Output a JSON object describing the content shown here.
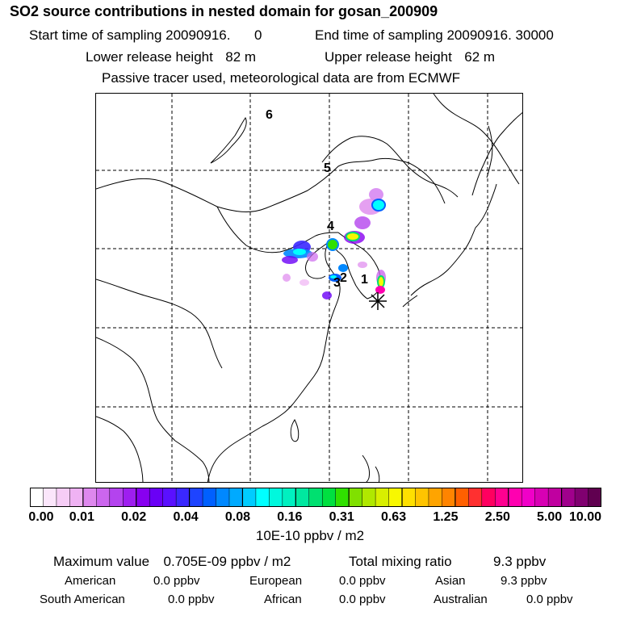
{
  "header": {
    "title": "SO2 source contributions in nested domain for gosan_200909",
    "start_label": "Start time of sampling 20090916.",
    "start_value": "0",
    "end_label": "End time of sampling 20090916. 30000",
    "lower_label": "Lower release height",
    "lower_value": "82 m",
    "upper_label": "Upper release height",
    "upper_value": "62 m",
    "note": "Passive tracer used, meteorological data are from ECMWF"
  },
  "map": {
    "markers": [
      "1",
      "2",
      "3",
      "4",
      "5",
      "6"
    ]
  },
  "colorbar": {
    "bin_labels": [
      "0.00",
      "0.01",
      "0.02",
      "0.04",
      "0.08",
      "0.16",
      "0.31",
      "0.63",
      "1.25",
      "2.50",
      "5.00",
      "10.00"
    ],
    "colors": [
      "#ffffff",
      "#fbe6fb",
      "#f6cdf6",
      "#efb2f3",
      "#de88ee",
      "#cc66ee",
      "#b443ee",
      "#9e1eef",
      "#8800f0",
      "#6a00f6",
      "#5a10ff",
      "#3a28ff",
      "#1e44ff",
      "#0060ff",
      "#0088ff",
      "#00aaff",
      "#00ccff",
      "#00ffff",
      "#00f8dd",
      "#00f0c0",
      "#00e8a0",
      "#00e070",
      "#00e040",
      "#30e000",
      "#80e000",
      "#b0e800",
      "#d8ef00",
      "#f8f800",
      "#ffe000",
      "#ffc400",
      "#ffa400",
      "#ff8400",
      "#ff6000",
      "#ff3030",
      "#ff0060",
      "#ff0090",
      "#ff00b0",
      "#f000c8",
      "#d800b4",
      "#c000a0",
      "#a0008c",
      "#800070",
      "#600050"
    ],
    "units": "10E-10 ppbv / m2"
  },
  "stats": {
    "max_label": "Maximum value",
    "max_value": "0.705E-09 ppbv / m2",
    "total_label": "Total mixing ratio",
    "total_value": "9.3 ppbv",
    "regions": [
      {
        "name": "American",
        "value": "0.0 ppbv"
      },
      {
        "name": "European",
        "value": "0.0 ppbv"
      },
      {
        "name": "Asian",
        "value": "9.3 ppbv"
      },
      {
        "name": "South American",
        "value": "0.0 ppbv"
      },
      {
        "name": "African",
        "value": "0.0 ppbv"
      },
      {
        "name": "Australian",
        "value": "0.0 ppbv"
      }
    ]
  }
}
